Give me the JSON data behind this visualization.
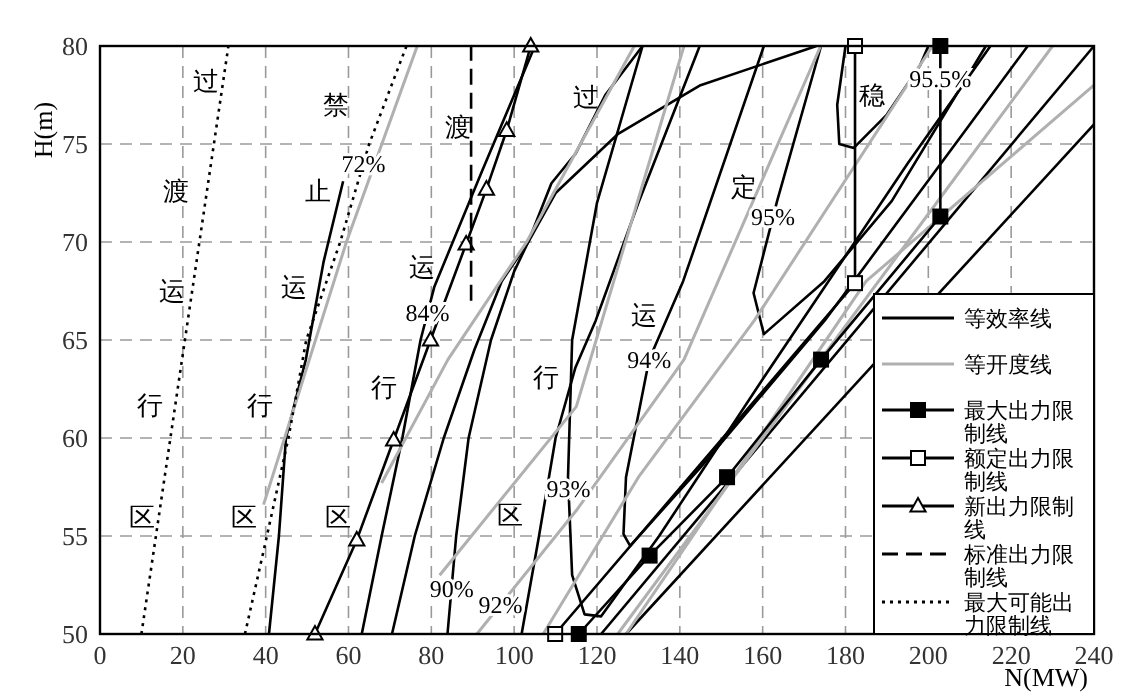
{
  "chart_data": {
    "type": "line",
    "xlabel": "N(MW)",
    "ylabel": "H(m)",
    "xlim": [
      0,
      240
    ],
    "ylim": [
      50,
      80
    ],
    "xticks": [
      0,
      20,
      40,
      60,
      80,
      100,
      120,
      140,
      160,
      180,
      200,
      220,
      240
    ],
    "yticks": [
      50,
      55,
      60,
      65,
      70,
      75,
      80
    ],
    "grid": true,
    "legend": "bottom right",
    "series": [
      {
        "name": "等效率线",
        "color": "#000000",
        "x": [
          40.8,
          43.2,
          44.9,
          49.7,
          54,
          58.7
        ],
        "values": [
          50,
          55,
          60,
          64,
          69,
          73.1
        ]
      },
      {
        "color": "#000000",
        "x": [
          63.2,
          68,
          73,
          77.4,
          80.7,
          92,
          105
        ],
        "values": [
          50,
          55,
          60,
          65,
          67.7,
          73.5,
          80
        ]
      },
      {
        "color": "#000000",
        "x": [
          70.5,
          76,
          83,
          90.4,
          97,
          103.4,
          109,
          114.8,
          122,
          131
        ],
        "values": [
          50,
          55,
          60,
          64.5,
          68,
          70,
          73,
          74.5,
          77.5,
          80
        ]
      },
      {
        "color": "#000000",
        "x": [
          83.9,
          86,
          89,
          94.4,
          100,
          103.4,
          110,
          125,
          145,
          173
        ],
        "values": [
          50,
          55,
          60,
          65,
          68.5,
          70,
          72.5,
          75.5,
          78,
          80
        ]
      },
      {
        "color": "#000000",
        "x": [
          101.8,
          106,
          110,
          114.8,
          119.7,
          130,
          144.8
        ],
        "values": [
          50,
          55,
          60,
          63.6,
          66,
          72,
          80
        ]
      },
      {
        "color": "#000000",
        "x": [
          131,
          120,
          114,
          113,
          114,
          117,
          121,
          135,
          160,
          195,
          215
        ],
        "values": [
          80,
          72,
          65,
          58,
          53,
          51,
          50.9,
          55,
          63,
          74,
          80
        ]
      },
      {
        "color": "#000000",
        "x": [
          160.3,
          140.8,
          132.6,
          127,
          126.4,
          128,
          145,
          175,
          210,
          224
        ],
        "values": [
          80,
          68,
          64,
          58,
          55.1,
          54.5,
          58.5,
          66,
          76,
          80
        ]
      },
      {
        "color": "#000000",
        "x": [
          174.1,
          163.5,
          157.8,
          160.3,
          174.9,
          191.2,
          213.9
        ],
        "values": [
          80,
          72.1,
          67.4,
          65.3,
          68,
          72.1,
          80
        ]
      },
      {
        "color": "#000000",
        "x": [
          180,
          178,
          178.5,
          182,
          190,
          198,
          200
        ],
        "values": [
          80,
          77,
          75,
          74.8,
          76.5,
          79,
          80
        ]
      },
      {
        "color": "#000000",
        "x": [
          121,
          240
        ],
        "values": [
          50,
          80
        ]
      },
      {
        "color": "#000000",
        "x": [
          127,
          240
        ],
        "values": [
          50,
          76
        ]
      },
      {
        "name": "等开度线",
        "color": "#b0b0b0",
        "x": [
          39.5,
          59.5,
          76.6
        ],
        "values": [
          56.6,
          70,
          80
        ]
      },
      {
        "color": "#b0b0b0",
        "x": [
          68,
          84,
          103,
          129
        ],
        "values": [
          57.7,
          64,
          70,
          80
        ]
      },
      {
        "color": "#b0b0b0",
        "x": [
          82,
          115,
          141
        ],
        "values": [
          53,
          61.6,
          80
        ]
      },
      {
        "color": "#b0b0b0",
        "x": [
          91,
          115,
          141,
          174
        ],
        "values": [
          50,
          56.3,
          64,
          80
        ]
      },
      {
        "color": "#b0b0b0",
        "x": [
          107,
          130,
          158,
          201
        ],
        "values": [
          50,
          58,
          66,
          80
        ]
      },
      {
        "color": "#b0b0b0",
        "x": [
          125,
          160,
          195,
          230
        ],
        "values": [
          50,
          60,
          70,
          80
        ]
      },
      {
        "color": "#b0b0b0",
        "x": [
          127,
          185,
          240
        ],
        "values": [
          50,
          68,
          78
        ]
      },
      {
        "name": "最大出力限制线",
        "color": "#000000",
        "marker": "square",
        "colors": [
          "#000000",
          "#000000",
          "#000000",
          "#000000",
          "#000000",
          "#000000"
        ],
        "x": [
          115.6,
          132.7,
          151.4,
          174.1,
          202.9,
          202.9
        ],
        "values": [
          50,
          54,
          58,
          64,
          71.3,
          80
        ]
      },
      {
        "name": "额定出力限制线",
        "color": "#000000",
        "marker": "square",
        "colors": [
          "#ffffff",
          "#ffffff",
          "#ffffff"
        ],
        "x": [
          109.9,
          182.3,
          182.3
        ],
        "values": [
          50,
          67.9,
          80
        ]
      },
      {
        "name": "新出力限制线",
        "color": "#000000",
        "marker": "triangle",
        "colors": [
          "#ffffff",
          "#ffffff",
          "#ffffff",
          "#ffffff",
          "#ffffff",
          "#ffffff",
          "#ffffff",
          "#ffffff"
        ],
        "x": [
          51.9,
          62,
          70.9,
          79.8,
          88.4,
          93.3,
          98.2,
          104
        ],
        "values": [
          50,
          54.8,
          59.9,
          65,
          69.9,
          72.7,
          75.7,
          80
        ]
      },
      {
        "name": "标准出力限制线",
        "color": "#000000",
        "line_style": "dashed",
        "x": [
          89.6,
          89.6
        ],
        "values": [
          67,
          80
        ]
      },
      {
        "name": "最大可能出力限制线",
        "color": "#000000",
        "line_style": "dotted",
        "x": [
          10,
          31
        ],
        "values": [
          50,
          80
        ]
      },
      {
        "color": "#000000",
        "line_style": "dotted",
        "x": [
          35,
          40.3,
          45.5,
          49.8,
          58,
          65,
          74
        ],
        "values": [
          50,
          55,
          60,
          65,
          70,
          75,
          80
        ]
      }
    ],
    "annotations": [
      {
        "text": "72%",
        "x": 63.6,
        "y": 74
      },
      {
        "text": "84%",
        "x": 79.1,
        "y": 66.4
      },
      {
        "text": "90%",
        "x": 84.9,
        "y": 52.3
      },
      {
        "text": "92%",
        "x": 96.7,
        "y": 51.5
      },
      {
        "text": "93%",
        "x": 113.1,
        "y": 57.4
      },
      {
        "text": "94%",
        "x": 132.6,
        "y": 64
      },
      {
        "text": "95%",
        "x": 162.5,
        "y": 71.3
      },
      {
        "text": "95.5%",
        "x": 202.9,
        "y": 78.3
      },
      "过",
      "渡",
      "运",
      "行",
      "区",
      "禁",
      "止",
      "运",
      "行",
      "区",
      "渡",
      "运",
      "行",
      "区",
      "过",
      "定",
      "运",
      "行",
      "区",
      "稳"
    ]
  }
}
